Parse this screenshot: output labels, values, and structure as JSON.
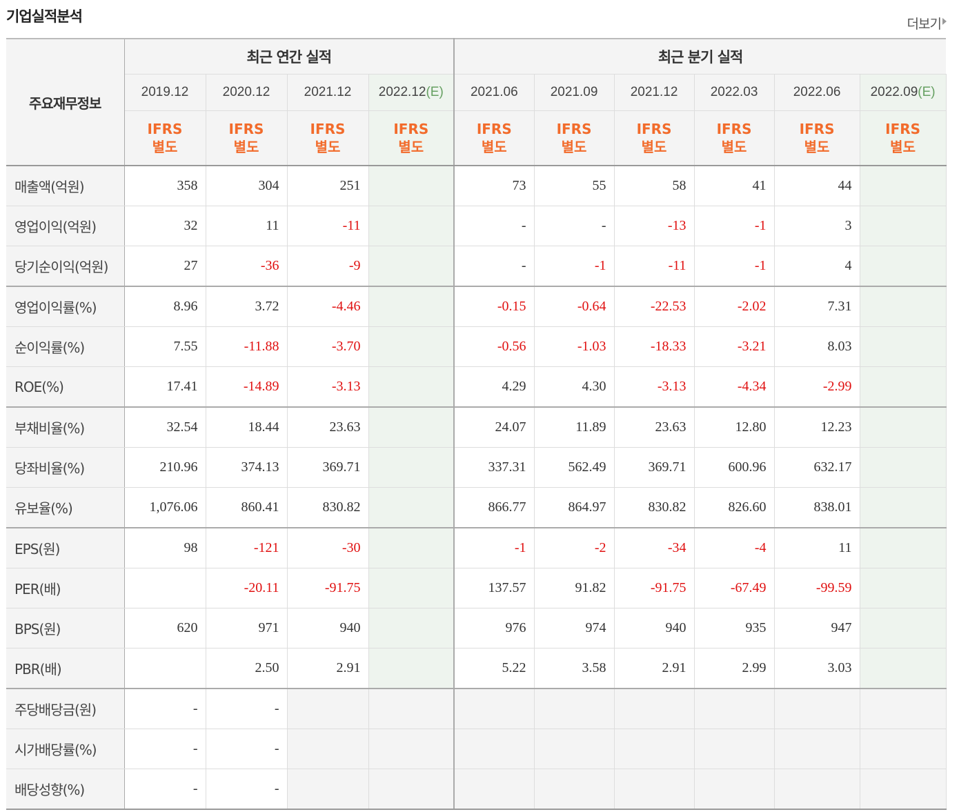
{
  "title": "기업실적분석",
  "more_label": "더보기",
  "header": {
    "main": "주요재무정보",
    "annual_group": "최근 연간 실적",
    "quarter_group": "최근 분기 실적",
    "accounting_top": "IFRS",
    "accounting_bottom": "별도",
    "est_mark": "(E)",
    "periods": [
      {
        "label": "2019.12",
        "est": false
      },
      {
        "label": "2020.12",
        "est": false
      },
      {
        "label": "2021.12",
        "est": false
      },
      {
        "label": "2022.12",
        "est": true
      },
      {
        "label": "2021.06",
        "est": false
      },
      {
        "label": "2021.09",
        "est": false
      },
      {
        "label": "2021.12",
        "est": false
      },
      {
        "label": "2022.03",
        "est": false
      },
      {
        "label": "2022.06",
        "est": false
      },
      {
        "label": "2022.09",
        "est": true
      }
    ]
  },
  "rows": [
    {
      "label": "매출액(억원)",
      "values": [
        "358",
        "304",
        "251",
        "",
        "73",
        "55",
        "58",
        "41",
        "44",
        ""
      ]
    },
    {
      "label": "영업이익(억원)",
      "values": [
        "32",
        "11",
        "-11",
        "",
        "-",
        "-",
        "-13",
        "-1",
        "3",
        ""
      ]
    },
    {
      "label": "당기순이익(억원)",
      "values": [
        "27",
        "-36",
        "-9",
        "",
        "-",
        "-1",
        "-11",
        "-1",
        "4",
        ""
      ]
    },
    {
      "label": "영업이익률(%)",
      "values": [
        "8.96",
        "3.72",
        "-4.46",
        "",
        "-0.15",
        "-0.64",
        "-22.53",
        "-2.02",
        "7.31",
        ""
      ]
    },
    {
      "label": "순이익률(%)",
      "values": [
        "7.55",
        "-11.88",
        "-3.70",
        "",
        "-0.56",
        "-1.03",
        "-18.33",
        "-3.21",
        "8.03",
        ""
      ]
    },
    {
      "label": "ROE(%)",
      "values": [
        "17.41",
        "-14.89",
        "-3.13",
        "",
        "4.29",
        "4.30",
        "-3.13",
        "-4.34",
        "-2.99",
        ""
      ]
    },
    {
      "label": "부채비율(%)",
      "values": [
        "32.54",
        "18.44",
        "23.63",
        "",
        "24.07",
        "11.89",
        "23.63",
        "12.80",
        "12.23",
        ""
      ]
    },
    {
      "label": "당좌비율(%)",
      "values": [
        "210.96",
        "374.13",
        "369.71",
        "",
        "337.31",
        "562.49",
        "369.71",
        "600.96",
        "632.17",
        ""
      ]
    },
    {
      "label": "유보율(%)",
      "values": [
        "1,076.06",
        "860.41",
        "830.82",
        "",
        "866.77",
        "864.97",
        "830.82",
        "826.60",
        "838.01",
        ""
      ]
    },
    {
      "label": "EPS(원)",
      "values": [
        "98",
        "-121",
        "-30",
        "",
        "-1",
        "-2",
        "-34",
        "-4",
        "11",
        ""
      ]
    },
    {
      "label": "PER(배)",
      "values": [
        "",
        "-20.11",
        "-91.75",
        "",
        "137.57",
        "91.82",
        "-91.75",
        "-67.49",
        "-99.59",
        ""
      ]
    },
    {
      "label": "BPS(원)",
      "values": [
        "620",
        "971",
        "940",
        "",
        "976",
        "974",
        "940",
        "935",
        "947",
        ""
      ]
    },
    {
      "label": "PBR(배)",
      "values": [
        "",
        "2.50",
        "2.91",
        "",
        "5.22",
        "3.58",
        "2.91",
        "2.99",
        "3.03",
        ""
      ]
    },
    {
      "label": "주당배당금(원)",
      "values": [
        "-",
        "-",
        null,
        null,
        null,
        null,
        null,
        null,
        null,
        null
      ]
    },
    {
      "label": "시가배당률(%)",
      "values": [
        "-",
        "-",
        null,
        null,
        null,
        null,
        null,
        null,
        null,
        null
      ]
    },
    {
      "label": "배당성향(%)",
      "values": [
        "-",
        "-",
        null,
        null,
        null,
        null,
        null,
        null,
        null,
        null
      ]
    }
  ],
  "colors": {
    "negative": "#e01010",
    "accounting": "#f26b2b",
    "estimate_bg": "#eef4ee",
    "header_bg": "#f4f4f4"
  }
}
